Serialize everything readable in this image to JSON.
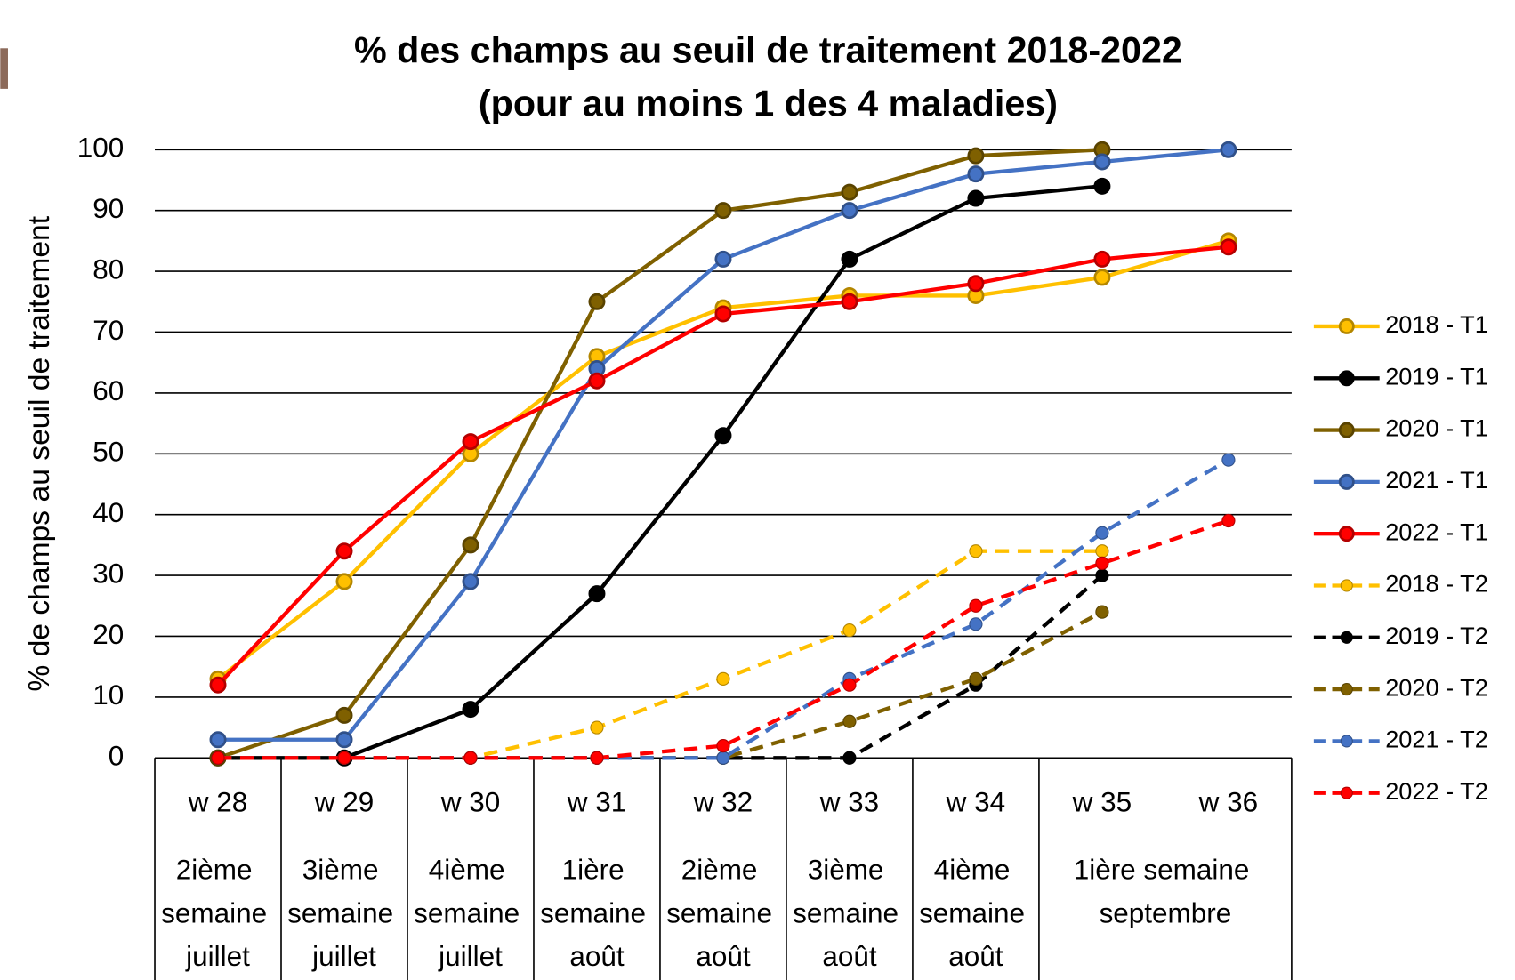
{
  "chart_data": {
    "type": "line",
    "title": "% des champs au seuil de traitement 2018-2022",
    "subtitle": "(pour au moins 1 des 4 maladies)",
    "y_label": "% de champs au seuil de traitement",
    "categories": [
      "w 28",
      "w 29",
      "w 30",
      "w 31",
      "w 32",
      "w 33",
      "w 34",
      "w 35",
      "w 36"
    ],
    "category_groups": [
      {
        "label": "2ième semaine juillet",
        "span": 1
      },
      {
        "label": "3ième semaine juillet",
        "span": 1
      },
      {
        "label": "4ième semaine juillet",
        "span": 1
      },
      {
        "label": "1ière semaine août",
        "span": 1
      },
      {
        "label": "2ième semaine août",
        "span": 1
      },
      {
        "label": "3ième semaine août",
        "span": 1
      },
      {
        "label": "4ième semaine août",
        "span": 1
      },
      {
        "label": "1ière semaine septembre",
        "span": 2
      }
    ],
    "ylim": [
      0,
      100
    ],
    "yticks": [
      0,
      10,
      20,
      30,
      40,
      50,
      60,
      70,
      80,
      90,
      100
    ],
    "grid": true,
    "legend": "right",
    "series": [
      {
        "name": "2018 - T1",
        "color": "#FFC000",
        "style": "solid",
        "values": [
          13,
          29,
          50,
          66,
          74,
          76,
          76,
          79,
          85
        ]
      },
      {
        "name": "2019 - T1",
        "color": "#000000",
        "style": "solid",
        "values": [
          0,
          0,
          8,
          27,
          53,
          82,
          92,
          94,
          null
        ]
      },
      {
        "name": "2020 - T1",
        "color": "#7F6000",
        "style": "solid",
        "values": [
          0,
          7,
          35,
          75,
          90,
          93,
          99,
          100,
          null
        ]
      },
      {
        "name": "2021 - T1",
        "color": "#4472C4",
        "style": "solid",
        "values": [
          3,
          3,
          29,
          64,
          82,
          90,
          96,
          98,
          100
        ]
      },
      {
        "name": "2022 - T1",
        "color": "#FF0000",
        "style": "solid",
        "values": [
          12,
          34,
          52,
          62,
          73,
          75,
          78,
          82,
          84
        ]
      },
      {
        "name": "2018 - T2",
        "color": "#FFC000",
        "style": "dashed",
        "values": [
          0,
          0,
          0,
          5,
          13,
          21,
          34,
          34,
          null
        ]
      },
      {
        "name": "2019 - T2",
        "color": "#000000",
        "style": "dashed",
        "values": [
          0,
          0,
          0,
          0,
          0,
          0,
          12,
          30,
          null
        ]
      },
      {
        "name": "2020 - T2",
        "color": "#7F6000",
        "style": "dashed",
        "values": [
          0,
          0,
          0,
          0,
          0,
          6,
          13,
          24,
          null
        ]
      },
      {
        "name": "2021 - T2",
        "color": "#4472C4",
        "style": "dashed",
        "values": [
          0,
          0,
          0,
          0,
          0,
          13,
          22,
          37,
          49
        ]
      },
      {
        "name": "2022 - T2",
        "color": "#FF0000",
        "style": "dashed",
        "values": [
          0,
          0,
          0,
          0,
          2,
          12,
          25,
          32,
          39
        ]
      }
    ]
  }
}
